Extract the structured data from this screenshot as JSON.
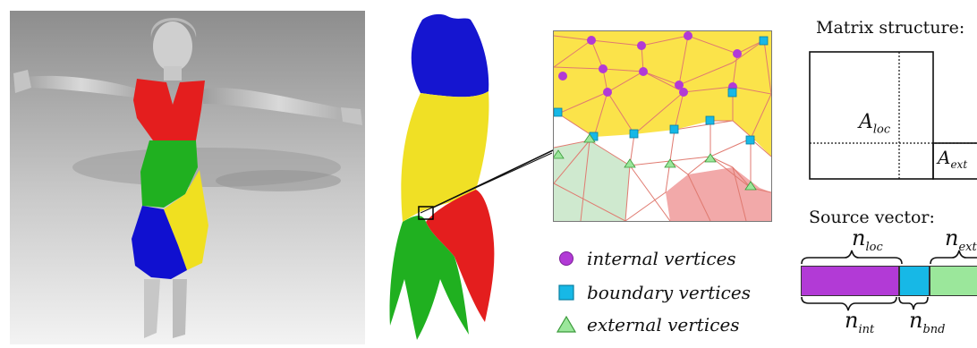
{
  "legend": {
    "internal": "internal vertices",
    "boundary": "boundary vertices",
    "external": "external vertices"
  },
  "matrix": {
    "title": "Matrix structure:",
    "a_loc": "A",
    "a_loc_sub": "loc",
    "a_ext": "A",
    "a_ext_sub": "ext"
  },
  "vector": {
    "title": "Source vector:",
    "n_loc": "n",
    "n_loc_sub": "loc",
    "n_ext": "n",
    "n_ext_sub": "ext",
    "n_int": "n",
    "n_int_sub": "int",
    "n_bnd": "n",
    "n_bnd_sub": "bnd"
  },
  "colors": {
    "internal": "#b23ad6",
    "boundary": "#17b8e6",
    "external": "#9be79b",
    "red": "#e41e1e",
    "green": "#20b020",
    "blue": "#1010d0",
    "yellow": "#f0e020",
    "mesh_yellow": "#fbe34a"
  }
}
